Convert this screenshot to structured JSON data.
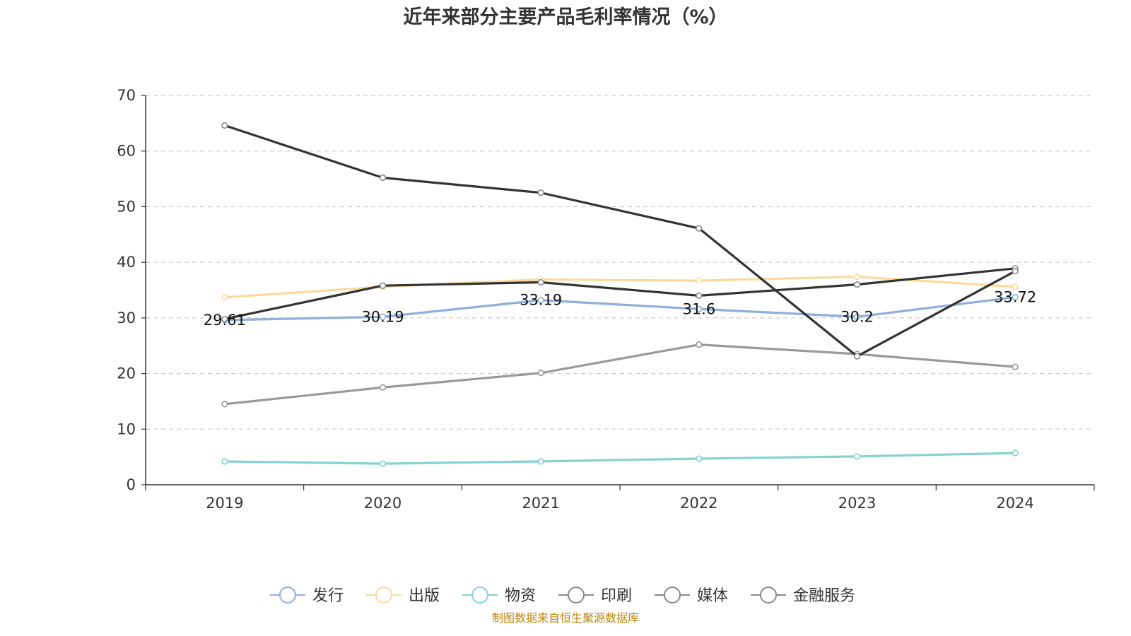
{
  "chart_data": {
    "type": "line",
    "title": "近年来部分主要产品毛利率情况（%）",
    "x": [
      "2019",
      "2020",
      "2021",
      "2022",
      "2023",
      "2024"
    ],
    "ylim": [
      0,
      70
    ],
    "yticks": [
      0,
      10,
      20,
      30,
      40,
      50,
      60,
      70
    ],
    "grid": true,
    "legend_position": "bottom",
    "series": [
      {
        "name": "发行",
        "color": "#8eaedb",
        "values": [
          29.61,
          30.19,
          33.19,
          31.6,
          30.2,
          33.72
        ]
      },
      {
        "name": "出版",
        "color": "#fbd99a",
        "values": [
          33.7,
          35.6,
          36.9,
          36.7,
          37.4,
          35.6
        ]
      },
      {
        "name": "物资",
        "color": "#86d2d2",
        "values": [
          4.2,
          3.8,
          4.2,
          4.7,
          5.1,
          5.7
        ]
      },
      {
        "name": "印刷",
        "color": "#333333",
        "values": [
          29.8,
          35.8,
          36.4,
          34.0,
          36.0,
          38.9
        ]
      },
      {
        "name": "媒体",
        "color": "#999999",
        "values": [
          14.5,
          17.5,
          20.1,
          25.2,
          23.5,
          21.2
        ]
      },
      {
        "name": "金融服务",
        "color": "#333333",
        "values": [
          64.6,
          55.2,
          52.5,
          46.1,
          23.1,
          38.4
        ]
      }
    ],
    "data_labels": {
      "series": "发行",
      "text": [
        "29.61",
        "30.19",
        "33.19",
        "31.6",
        "30.2",
        "33.72"
      ]
    },
    "legend_icon_colors": [
      "#8eaedb",
      "#fbd99a",
      "#86d2d2",
      "#888888",
      "#888888",
      "#888888"
    ],
    "source_note": "制图数据来自恒生聚源数据库"
  }
}
